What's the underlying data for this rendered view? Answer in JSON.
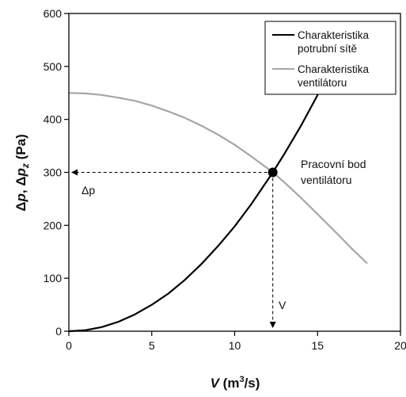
{
  "chart_data": {
    "type": "line",
    "xlabel": {
      "main": "V",
      "unit_open": " (m",
      "unit_sup": "3",
      "unit_close": "/s)"
    },
    "ylabel": {
      "p1": "Δ",
      "p1_var": "p",
      "sep": ", Δ",
      "p2_var": "p",
      "p2_sub": "z",
      "unit": " (Pa)"
    },
    "xlim": [
      0,
      20
    ],
    "ylim": [
      0,
      600
    ],
    "x_ticks": [
      "0",
      "5",
      "10",
      "15",
      "20"
    ],
    "y_ticks": [
      "0",
      "100",
      "200",
      "300",
      "400",
      "500",
      "600"
    ],
    "grid": false,
    "legend_position": "top-right",
    "series": [
      {
        "name": "Charakteristika potrubní sítě",
        "name_lines": [
          "Charakteristika",
          "potrubní sítě"
        ],
        "color": "#000000",
        "x": [
          0,
          1,
          2,
          3,
          4,
          5,
          6,
          7,
          8,
          9,
          10,
          11,
          12,
          12.3,
          13,
          14,
          15,
          16,
          16.9
        ],
        "y": [
          0,
          2,
          8,
          18,
          32,
          50,
          71,
          97,
          127,
          161,
          198,
          240,
          286,
          300,
          335,
          388,
          446,
          507,
          567
        ]
      },
      {
        "name": "Charakteristika ventilátoru",
        "name_lines": [
          "Charakteristika",
          "ventilátoru"
        ],
        "color": "#a6a6a6",
        "x": [
          0,
          1,
          2,
          3,
          4,
          5,
          6,
          7,
          8,
          9,
          10,
          11,
          12,
          12.3,
          13,
          14,
          15,
          16,
          17,
          18
        ],
        "y": [
          450,
          449,
          446,
          441,
          435,
          426,
          415,
          403,
          388,
          371,
          352,
          330,
          307,
          300,
          281,
          252,
          221,
          190,
          158,
          128
        ]
      }
    ],
    "operating_point": {
      "x": 12.3,
      "y": 300,
      "label_lines": [
        "Pracovní bod",
        "ventilátoru"
      ]
    },
    "annotations": {
      "delta_p": "Δp",
      "v": "V"
    }
  }
}
